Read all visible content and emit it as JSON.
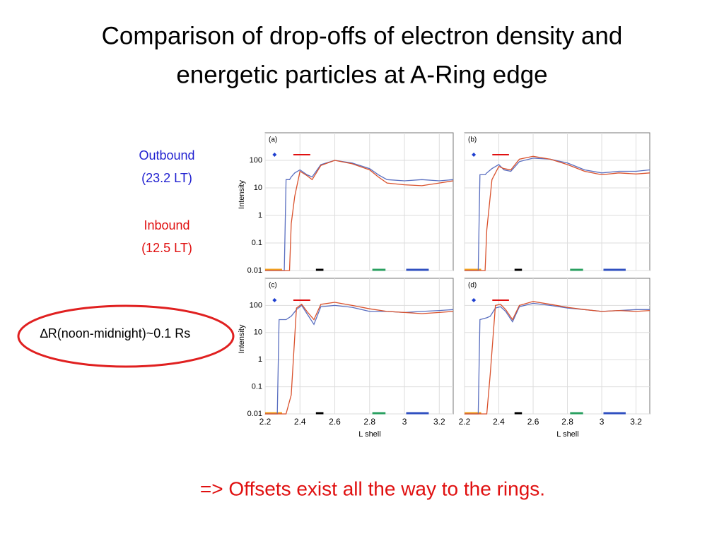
{
  "title_line1": "Comparison of drop-offs of electron density and",
  "title_line2": "energetic particles at A-Ring edge",
  "labels": {
    "outbound": "Outbound",
    "outbound_lt": "(23.2 LT)",
    "inbound": "Inbound",
    "inbound_lt": "(12.5 LT)",
    "delta": "∆R(noon-midnight)~0.1 Rs",
    "conclusion": "=> Offsets exist all the way to the rings."
  },
  "chart_data": [
    {
      "type": "line",
      "title": "(a)",
      "ylabel": "Intensity",
      "log_y": true,
      "grid": true,
      "xlim": [
        2.2,
        3.28
      ],
      "ylim": [
        0.01,
        1000
      ],
      "xticks": [
        2.2,
        2.4,
        2.6,
        2.8,
        3.0,
        3.2
      ],
      "yticks": [
        0.01,
        0.1,
        1,
        10,
        100
      ],
      "x": [
        2.2,
        2.31,
        2.32,
        2.34,
        2.35,
        2.37,
        2.4,
        2.44,
        2.47,
        2.52,
        2.6,
        2.7,
        2.8,
        2.85,
        2.9,
        3.0,
        3.1,
        3.2,
        3.28
      ],
      "series": [
        {
          "color": "#5a6fc0",
          "values": [
            0.01,
            0.01,
            20,
            20,
            25,
            35,
            45,
            30,
            25,
            70,
            100,
            80,
            50,
            30,
            20,
            18,
            20,
            18,
            20
          ]
        },
        {
          "color": "#d9512c",
          "values": [
            0.01,
            0.01,
            0.01,
            0.01,
            0.5,
            5,
            40,
            28,
            20,
            65,
            100,
            75,
            45,
            25,
            15,
            13,
            12,
            15,
            18
          ]
        }
      ]
    },
    {
      "type": "line",
      "title": "(b)",
      "log_y": true,
      "grid": true,
      "xlim": [
        2.2,
        3.28
      ],
      "ylim": [
        0.01,
        1000
      ],
      "xticks": [
        2.2,
        2.4,
        2.6,
        2.8,
        3.0,
        3.2
      ],
      "yticks": [
        0.01,
        0.1,
        1,
        10,
        100
      ],
      "x": [
        2.2,
        2.28,
        2.29,
        2.32,
        2.33,
        2.36,
        2.4,
        2.43,
        2.47,
        2.52,
        2.6,
        2.7,
        2.8,
        2.9,
        3.0,
        3.1,
        3.2,
        3.28
      ],
      "series": [
        {
          "color": "#5a6fc0",
          "values": [
            0.01,
            0.01,
            30,
            30,
            35,
            50,
            70,
            45,
            40,
            90,
            120,
            110,
            80,
            45,
            35,
            40,
            40,
            45
          ]
        },
        {
          "color": "#d9512c",
          "values": [
            0.01,
            0.01,
            0.01,
            0.01,
            0.3,
            20,
            60,
            50,
            45,
            110,
            140,
            110,
            70,
            40,
            30,
            35,
            32,
            35
          ]
        }
      ]
    },
    {
      "type": "line",
      "title": "(c)",
      "ylabel": "Intensity",
      "xlabel": "L shell",
      "log_y": true,
      "grid": true,
      "xlim": [
        2.2,
        3.28
      ],
      "ylim": [
        0.01,
        1000
      ],
      "xticks": [
        2.2,
        2.4,
        2.6,
        2.8,
        3.0,
        3.2
      ],
      "yticks": [
        0.01,
        0.1,
        1,
        10,
        100
      ],
      "x": [
        2.2,
        2.27,
        2.28,
        2.32,
        2.35,
        2.38,
        2.41,
        2.44,
        2.48,
        2.52,
        2.6,
        2.7,
        2.8,
        2.9,
        3.0,
        3.1,
        3.2,
        3.28
      ],
      "series": [
        {
          "color": "#5a6fc0",
          "values": [
            0.01,
            0.01,
            30,
            30,
            40,
            70,
            100,
            50,
            20,
            90,
            100,
            85,
            60,
            60,
            55,
            60,
            65,
            70
          ]
        },
        {
          "color": "#d9512c",
          "values": [
            0.01,
            0.01,
            0.01,
            0.01,
            0.05,
            80,
            110,
            60,
            30,
            110,
            130,
            100,
            75,
            60,
            55,
            50,
            55,
            60
          ]
        }
      ]
    },
    {
      "type": "line",
      "title": "(d)",
      "xlabel": "L shell",
      "log_y": true,
      "grid": true,
      "xlim": [
        2.2,
        3.28
      ],
      "ylim": [
        0.01,
        1000
      ],
      "xticks": [
        2.2,
        2.4,
        2.6,
        2.8,
        3.0,
        3.2
      ],
      "yticks": [
        0.01,
        0.1,
        1,
        10,
        100
      ],
      "x": [
        2.2,
        2.28,
        2.29,
        2.33,
        2.35,
        2.38,
        2.41,
        2.44,
        2.48,
        2.52,
        2.6,
        2.7,
        2.8,
        2.9,
        3.0,
        3.1,
        3.2,
        3.28
      ],
      "series": [
        {
          "color": "#5a6fc0",
          "values": [
            0.01,
            0.01,
            30,
            35,
            40,
            80,
            90,
            60,
            25,
            90,
            120,
            100,
            80,
            70,
            60,
            65,
            70,
            70
          ]
        },
        {
          "color": "#d9512c",
          "values": [
            0.01,
            0.01,
            0.01,
            0.01,
            0.3,
            100,
            110,
            70,
            30,
            100,
            140,
            110,
            85,
            70,
            60,
            65,
            60,
            65
          ]
        }
      ]
    }
  ]
}
